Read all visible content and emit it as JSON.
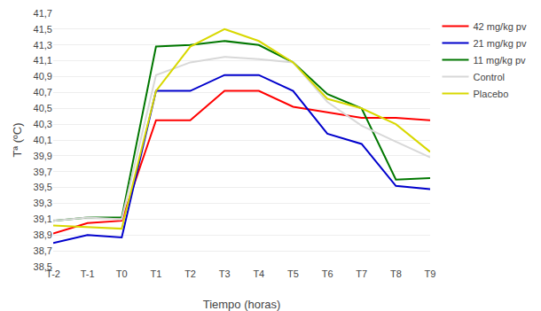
{
  "chart_data": {
    "type": "line",
    "xlabel": "Tiempo (horas)",
    "ylabel": "Tª (ºC)",
    "categories": [
      "T-2",
      "T-1",
      "T0",
      "T1",
      "T2",
      "T3",
      "T4",
      "T5",
      "T6",
      "T7",
      "T8",
      "T9"
    ],
    "series": [
      {
        "name": "42 mg/kg pv",
        "color": "#ff0000",
        "values": [
          38.92,
          39.05,
          39.08,
          40.35,
          40.35,
          40.72,
          40.72,
          40.52,
          40.45,
          40.38,
          40.38,
          40.35
        ]
      },
      {
        "name": "21 mg/kg pv",
        "color": "#0000cc",
        "values": [
          38.8,
          38.9,
          38.87,
          40.72,
          40.72,
          40.92,
          40.92,
          40.72,
          40.18,
          40.05,
          39.52,
          39.48
        ]
      },
      {
        "name": "11 mg/kg pv",
        "color": "#007700",
        "values": [
          39.08,
          39.12,
          39.12,
          41.28,
          41.3,
          41.35,
          41.3,
          41.08,
          40.68,
          40.5,
          39.6,
          39.62
        ]
      },
      {
        "name": "Control",
        "color": "#d8d8d8",
        "values": [
          39.08,
          39.12,
          39.1,
          40.92,
          41.08,
          41.15,
          41.12,
          41.08,
          40.58,
          40.28,
          40.08,
          39.88
        ]
      },
      {
        "name": "Placebo",
        "color": "#d8d800",
        "values": [
          39.02,
          39.0,
          38.98,
          40.72,
          41.28,
          41.5,
          41.35,
          41.08,
          40.62,
          40.5,
          40.3,
          39.95
        ]
      }
    ],
    "ylim": [
      38.5,
      41.7
    ],
    "yticks": [
      {
        "value": 38.5,
        "label": "38,5"
      },
      {
        "value": 38.7,
        "label": "38,7"
      },
      {
        "value": 38.9,
        "label": "38,9"
      },
      {
        "value": 39.1,
        "label": "39,1"
      },
      {
        "value": 39.3,
        "label": "39,3"
      },
      {
        "value": 39.5,
        "label": "39,5"
      },
      {
        "value": 39.7,
        "label": "39,7"
      },
      {
        "value": 39.9,
        "label": "39,9"
      },
      {
        "value": 40.1,
        "label": "40,1"
      },
      {
        "value": 40.3,
        "label": "40,3"
      },
      {
        "value": 40.5,
        "label": "40,5"
      },
      {
        "value": 40.7,
        "label": "40,7"
      },
      {
        "value": 40.9,
        "label": "40,9"
      },
      {
        "value": 41.1,
        "label": "41,1"
      },
      {
        "value": 41.3,
        "label": "41,3"
      },
      {
        "value": 41.5,
        "label": "41,5"
      },
      {
        "value": 41.7,
        "label": "41,7"
      }
    ],
    "grid": true,
    "legend": "upper right"
  }
}
